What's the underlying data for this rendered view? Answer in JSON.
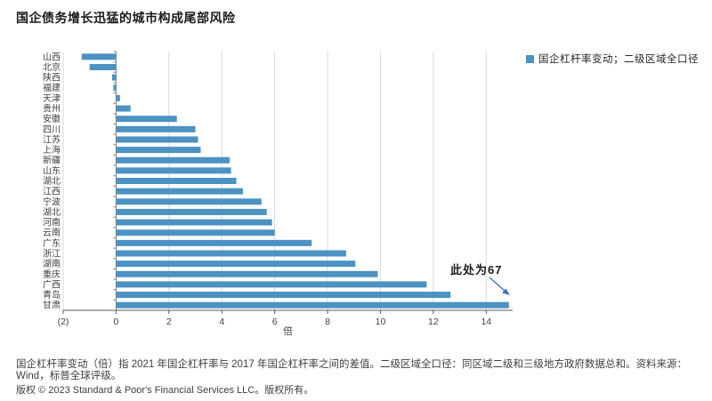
{
  "title": "国企债务增长迅猛的城市构成尾部风险",
  "legend": {
    "label": "国企杠杆率变动；二级区域全口径"
  },
  "chart_data": {
    "type": "bar",
    "orientation": "horizontal",
    "title": "国企债务增长迅猛的城市构成尾部风险",
    "series_name": "国企杠杆率变动；二级区域全口径",
    "categories": [
      "山西",
      "北京",
      "陕西",
      "福建",
      "天津",
      "贵州",
      "安徽",
      "四川",
      "江苏",
      "上海",
      "新疆",
      "山东",
      "湖北",
      "江西",
      "宁波",
      "湖北",
      "河南",
      "云南",
      "广东",
      "浙江",
      "湖南",
      "重庆",
      "广西",
      "青岛",
      "甘肃"
    ],
    "values": [
      -1.3,
      -1.0,
      -0.15,
      -0.1,
      0.15,
      0.55,
      2.3,
      3.0,
      3.1,
      3.2,
      4.3,
      4.35,
      4.55,
      4.8,
      5.5,
      5.7,
      5.9,
      6.0,
      7.4,
      8.7,
      9.05,
      9.9,
      11.75,
      12.65,
      14.86
    ],
    "xlabel": "倍",
    "xlim": [
      -2,
      15
    ],
    "xticks": [
      -2,
      0,
      2,
      4,
      6,
      8,
      10,
      12,
      14
    ],
    "xtick_labels": [
      "(2)",
      "0",
      "2",
      "4",
      "6",
      "8",
      "10",
      "12",
      "14"
    ],
    "grid": "vertical-light-gray",
    "legend_position": "top-right",
    "bar_color": "#4c92c3",
    "annotation": {
      "text": "此处为67",
      "target_category": "甘肃",
      "actual_value": 67
    }
  },
  "footnotes": [
    "国企杠杆率变动（倍）指 2021 年国企杠杆率与 2017 年国企杠杆率之间的差值。二级区域全口径：同区域二级和三级地方政府数据总和。资料来源：",
    "Wind，标普全球评级。"
  ],
  "copyright": "版权 © 2023 Standard & Poor's Financial Services LLC。版权所有。",
  "colors": {
    "bar": "#4c92c3",
    "arrow": "#4472c4",
    "axis": "#595959",
    "category_axis": "#808080",
    "gridline": "#d9d9d9",
    "text": "#3f3f3f"
  }
}
